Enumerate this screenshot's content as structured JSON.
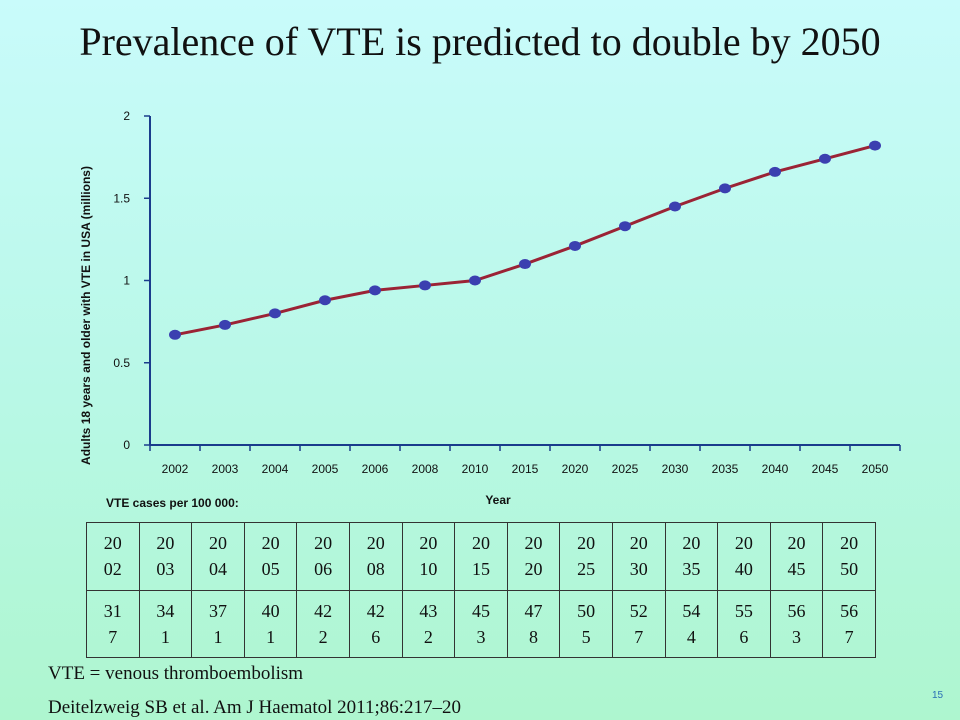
{
  "slide": {
    "title": "Prevalence of VTE is predicted to double by 2050",
    "table_caption": "VTE cases per 100 000:",
    "footnote_1": "VTE = venous thromboembolism",
    "footnote_2": "Deitelzweig SB et al. Am J Haematol 2011;86:217–20",
    "page_number": "15"
  },
  "chart_data": {
    "type": "line",
    "title": "",
    "xlabel": "Year",
    "ylabel": "Adults 18 years and older with VTE in USA (millions)",
    "categories": [
      "2002",
      "2003",
      "2004",
      "2005",
      "2006",
      "2008",
      "2010",
      "2015",
      "2020",
      "2025",
      "2030",
      "2035",
      "2040",
      "2045",
      "2050"
    ],
    "series": [
      {
        "values": [
          0.67,
          0.73,
          0.8,
          0.88,
          0.94,
          0.97,
          1.0,
          1.1,
          1.21,
          1.33,
          1.45,
          1.56,
          1.66,
          1.74,
          1.82
        ]
      }
    ],
    "y_ticks": [
      "0",
      "0.5",
      "1",
      "1.5",
      "2"
    ],
    "ylim": [
      0,
      2
    ],
    "grid": false,
    "line_color": "#9b2335",
    "marker_color": "#3b3fb0",
    "axis_color": "#1a3c8c"
  },
  "table": {
    "years": [
      "20 02",
      "20 03",
      "20 04",
      "20 05",
      "20 06",
      "20 08",
      "20 10",
      "20 15",
      "20 20",
      "20 25",
      "20 30",
      "20 35",
      "20 40",
      "20 45",
      "20 50"
    ],
    "cases": [
      "31 7",
      "34 1",
      "37 1",
      "40 1",
      "42 2",
      "42 6",
      "43 2",
      "45 3",
      "47 8",
      "50 5",
      "52 7",
      "54 4",
      "55 6",
      "56 3",
      "56 7"
    ]
  }
}
